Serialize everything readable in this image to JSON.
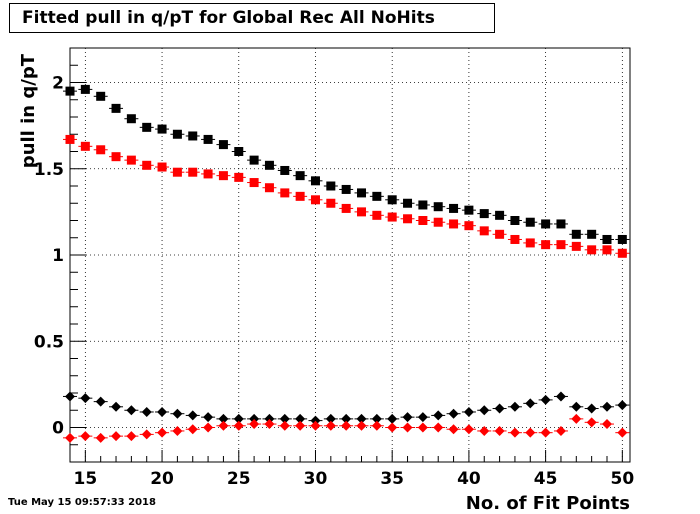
{
  "chart_data": {
    "type": "scatter",
    "title": "Fitted pull in q/pT for Global Rec All NoHits",
    "xlabel": "No. of Fit Points",
    "ylabel": "pull in q/pT",
    "xlim": [
      14,
      50.5
    ],
    "ylim": [
      -0.2,
      2.2
    ],
    "xticks": [
      15,
      20,
      25,
      30,
      35,
      40,
      45,
      50
    ],
    "yticks": [
      0,
      0.5,
      1,
      1.5,
      2
    ],
    "ytick_labels": [
      "0",
      "0.5",
      "1",
      "1.5",
      "2"
    ],
    "grid": true,
    "x": [
      14,
      15,
      16,
      17,
      18,
      19,
      20,
      21,
      22,
      23,
      24,
      25,
      26,
      27,
      28,
      29,
      30,
      31,
      32,
      33,
      34,
      35,
      36,
      37,
      38,
      39,
      40,
      41,
      42,
      43,
      44,
      45,
      46,
      47,
      48,
      49,
      50
    ],
    "series": [
      {
        "marker": "square",
        "color": "#000000",
        "values": [
          1.95,
          1.96,
          1.92,
          1.85,
          1.79,
          1.74,
          1.73,
          1.7,
          1.69,
          1.67,
          1.64,
          1.6,
          1.55,
          1.52,
          1.49,
          1.46,
          1.43,
          1.4,
          1.38,
          1.36,
          1.34,
          1.32,
          1.3,
          1.29,
          1.28,
          1.27,
          1.26,
          1.24,
          1.23,
          1.2,
          1.19,
          1.18,
          1.18,
          1.12,
          1.12,
          1.09,
          1.09
        ]
      },
      {
        "marker": "square",
        "color": "#ff0000",
        "values": [
          1.67,
          1.63,
          1.61,
          1.57,
          1.55,
          1.52,
          1.51,
          1.48,
          1.48,
          1.47,
          1.46,
          1.45,
          1.42,
          1.39,
          1.36,
          1.34,
          1.32,
          1.3,
          1.27,
          1.25,
          1.23,
          1.22,
          1.21,
          1.2,
          1.19,
          1.18,
          1.17,
          1.14,
          1.12,
          1.09,
          1.07,
          1.06,
          1.06,
          1.05,
          1.03,
          1.03,
          1.01
        ]
      },
      {
        "marker": "diamond",
        "color": "#000000",
        "values": [
          0.18,
          0.17,
          0.15,
          0.12,
          0.1,
          0.09,
          0.09,
          0.08,
          0.07,
          0.06,
          0.05,
          0.05,
          0.05,
          0.05,
          0.05,
          0.05,
          0.04,
          0.05,
          0.05,
          0.05,
          0.05,
          0.05,
          0.06,
          0.06,
          0.07,
          0.08,
          0.09,
          0.1,
          0.11,
          0.12,
          0.14,
          0.16,
          0.18,
          0.12,
          0.11,
          0.12,
          0.13
        ]
      },
      {
        "marker": "diamond",
        "color": "#ff0000",
        "values": [
          -0.06,
          -0.05,
          -0.06,
          -0.05,
          -0.05,
          -0.04,
          -0.03,
          -0.02,
          -0.01,
          0.0,
          0.01,
          0.01,
          0.02,
          0.02,
          0.01,
          0.01,
          0.01,
          0.01,
          0.01,
          0.01,
          0.01,
          0.0,
          0.0,
          0.0,
          0.0,
          -0.01,
          -0.01,
          -0.02,
          -0.02,
          -0.03,
          -0.03,
          -0.03,
          -0.02,
          0.05,
          0.03,
          0.02,
          -0.03
        ]
      }
    ]
  },
  "footer": {
    "timestamp": "Tue May 15 09:57:33 2018"
  }
}
